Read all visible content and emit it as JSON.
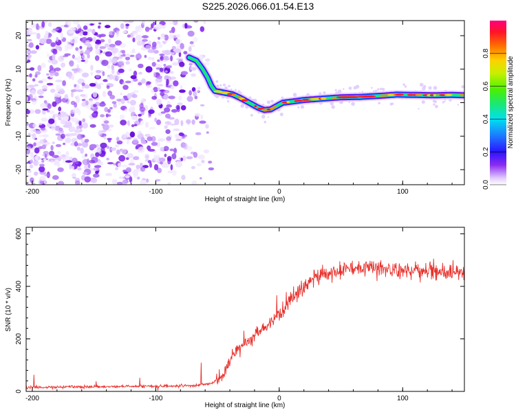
{
  "title": "S225.2026.066.01.54.E13",
  "chart_data": [
    {
      "type": "heatmap",
      "xlabel": "Height of straight line (km)",
      "ylabel": "Frequency (Hz)",
      "xlim": [
        -205,
        150
      ],
      "ylim": [
        -24.5,
        24.5
      ],
      "xticks": [
        -200,
        -100,
        0,
        100
      ],
      "yticks": [
        -20,
        -10,
        0,
        10,
        20
      ],
      "noise_region_x": [
        -205,
        -60
      ],
      "ridge": [
        {
          "x": -73,
          "y": 13.5
        },
        {
          "x": -67,
          "y": 12.5
        },
        {
          "x": -62,
          "y": 10.0
        },
        {
          "x": -58,
          "y": 7.5
        },
        {
          "x": -55,
          "y": 5.0
        },
        {
          "x": -52,
          "y": 3.5
        },
        {
          "x": -45,
          "y": 3.0
        },
        {
          "x": -38,
          "y": 2.5
        },
        {
          "x": -32,
          "y": 1.5
        },
        {
          "x": -27,
          "y": 0.5
        },
        {
          "x": -22,
          "y": -0.5
        },
        {
          "x": -17,
          "y": -1.5
        },
        {
          "x": -12,
          "y": -2.2
        },
        {
          "x": -7,
          "y": -2.0
        },
        {
          "x": -2,
          "y": -1.0
        },
        {
          "x": 3,
          "y": 0.0
        },
        {
          "x": 10,
          "y": 0.3
        },
        {
          "x": 20,
          "y": 0.8
        },
        {
          "x": 35,
          "y": 1.2
        },
        {
          "x": 50,
          "y": 1.6
        },
        {
          "x": 65,
          "y": 1.7
        },
        {
          "x": 80,
          "y": 2.0
        },
        {
          "x": 95,
          "y": 2.4
        },
        {
          "x": 110,
          "y": 2.3
        },
        {
          "x": 125,
          "y": 2.2
        },
        {
          "x": 140,
          "y": 2.3
        },
        {
          "x": 150,
          "y": 2.2
        }
      ],
      "colorbar": {
        "label": "Normalized spectral amplitude",
        "range": [
          0.0,
          1.0
        ],
        "ticks": [
          "0.0",
          "0.2",
          "0.4",
          "0.6",
          "0.8"
        ]
      }
    },
    {
      "type": "line",
      "series": [
        {
          "name": "SNR",
          "color": "#e8302b",
          "x": [
            -205,
            -150,
            -100,
            -70,
            -55,
            -45,
            -38,
            -30,
            -20,
            -10,
            0,
            10,
            20,
            30,
            40,
            50,
            60,
            70,
            80,
            90,
            100,
            110,
            120,
            130,
            140,
            150
          ],
          "y": [
            15,
            18,
            20,
            22,
            30,
            60,
            140,
            175,
            205,
            250,
            290,
            345,
            400,
            435,
            450,
            460,
            470,
            472,
            470,
            465,
            462,
            462,
            460,
            455,
            455,
            455
          ]
        }
      ],
      "xlabel": "Height of straight line (km)",
      "ylabel": "SNR (10 * v/v)",
      "xlim": [
        -205,
        150
      ],
      "ylim": [
        0,
        625
      ],
      "xticks": [
        -200,
        -100,
        0,
        100
      ],
      "yticks": [
        0,
        200,
        400,
        600
      ]
    }
  ]
}
